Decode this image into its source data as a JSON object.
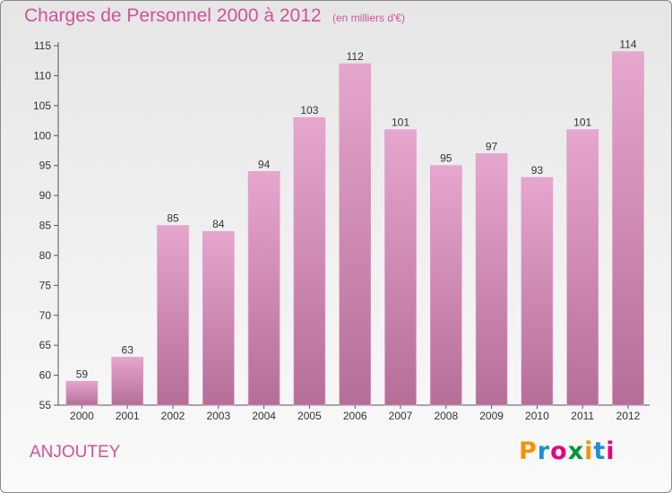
{
  "header": {
    "title": "Charges de Personnel 2000 à 2012",
    "subtitle": "(en milliers d'€)"
  },
  "footer": {
    "commune": "ANJOUTEY",
    "logo_letters": [
      "P",
      "r",
      "o",
      "x",
      "i",
      "t",
      "i"
    ],
    "logo_colors": [
      "#f39200",
      "#1d8fd6",
      "#e5007e",
      "#009640",
      "#f39200",
      "#1d8fd6",
      "#e5007e"
    ]
  },
  "chart_data": {
    "type": "bar",
    "categories": [
      "2000",
      "2001",
      "2002",
      "2003",
      "2004",
      "2005",
      "2006",
      "2007",
      "2008",
      "2009",
      "2010",
      "2011",
      "2012"
    ],
    "values": [
      59,
      63,
      85,
      84,
      94,
      103,
      112,
      101,
      95,
      97,
      93,
      101,
      114
    ],
    "ylim": [
      55,
      115
    ],
    "yticks": [
      55,
      60,
      65,
      70,
      75,
      80,
      85,
      90,
      95,
      100,
      105,
      110,
      115
    ],
    "grid": false,
    "bar_color_top": "#e6a6ce",
    "bar_color_bottom": "#b56e98"
  }
}
